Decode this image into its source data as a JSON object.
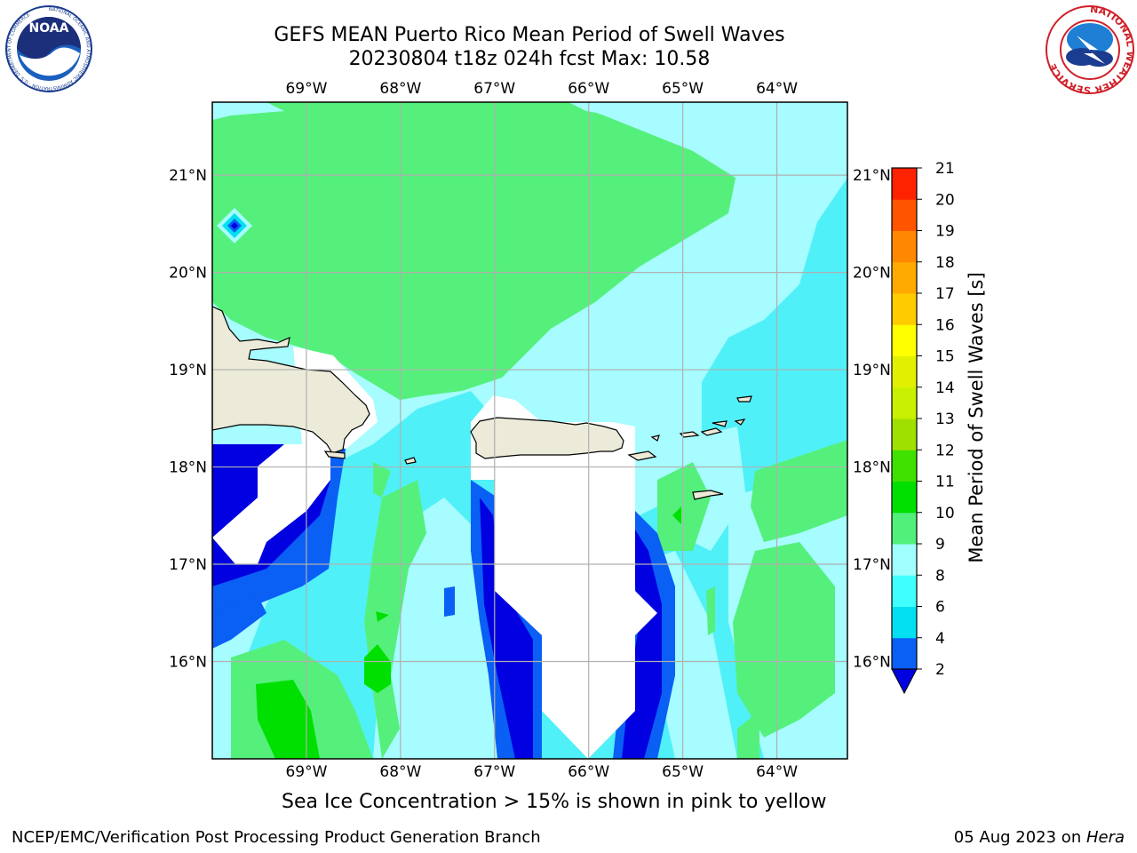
{
  "title": {
    "line1": "GEFS MEAN Puerto Rico Mean Period of Swell Waves",
    "line2": "20230804 t18z 024h fcst   Max: 10.58"
  },
  "map": {
    "lon_labels": [
      "69°W",
      "68°W",
      "67°W",
      "66°W",
      "65°W",
      "64°W"
    ],
    "lat_labels": [
      "21°N",
      "20°N",
      "19°N",
      "18°N",
      "17°N",
      "16°N"
    ],
    "lon_range_deg": [
      -70.0,
      -63.25
    ],
    "lat_range_deg": [
      15.0,
      21.75
    ],
    "gridlines": true
  },
  "colorbar": {
    "label": "Mean Period of Swell Waves [s]",
    "ticks": [
      "2",
      "4",
      "6",
      "8",
      "9",
      "10",
      "11",
      "12",
      "13",
      "14",
      "15",
      "16",
      "17",
      "18",
      "19",
      "20",
      "21"
    ],
    "colors": [
      "#0a5ff5",
      "#00e0f0",
      "#40ffff",
      "#a0ffff",
      "#50f07a",
      "#00e000",
      "#40e000",
      "#a0e000",
      "#c8f000",
      "#e0f000",
      "#ffff00",
      "#ffcc00",
      "#ffaa00",
      "#ff8800",
      "#ff5500",
      "#ff2200"
    ],
    "under_color": "#0000e0",
    "top_color": "#ff0000"
  },
  "caption": "Sea Ice Concentration > 15% is shown in pink to yellow",
  "footer": {
    "left": "NCEP/EMC/Verification Post Processing Product Generation Branch",
    "date": "05 Aug 2023 on ",
    "host": "Hera"
  },
  "logos": {
    "noaa_text": "NOAA",
    "noaa_ring": "NATIONAL OCEANIC AND ATMOSPHERIC ADMINISTRATION · U.S. DEPARTMENT OF COMMERCE",
    "nws_ring": "NATIONAL WEATHER SERVICE"
  },
  "colors": {
    "land": "#ecebd9",
    "white_mask": "#ffffff",
    "grid": "#b0b0b0"
  }
}
